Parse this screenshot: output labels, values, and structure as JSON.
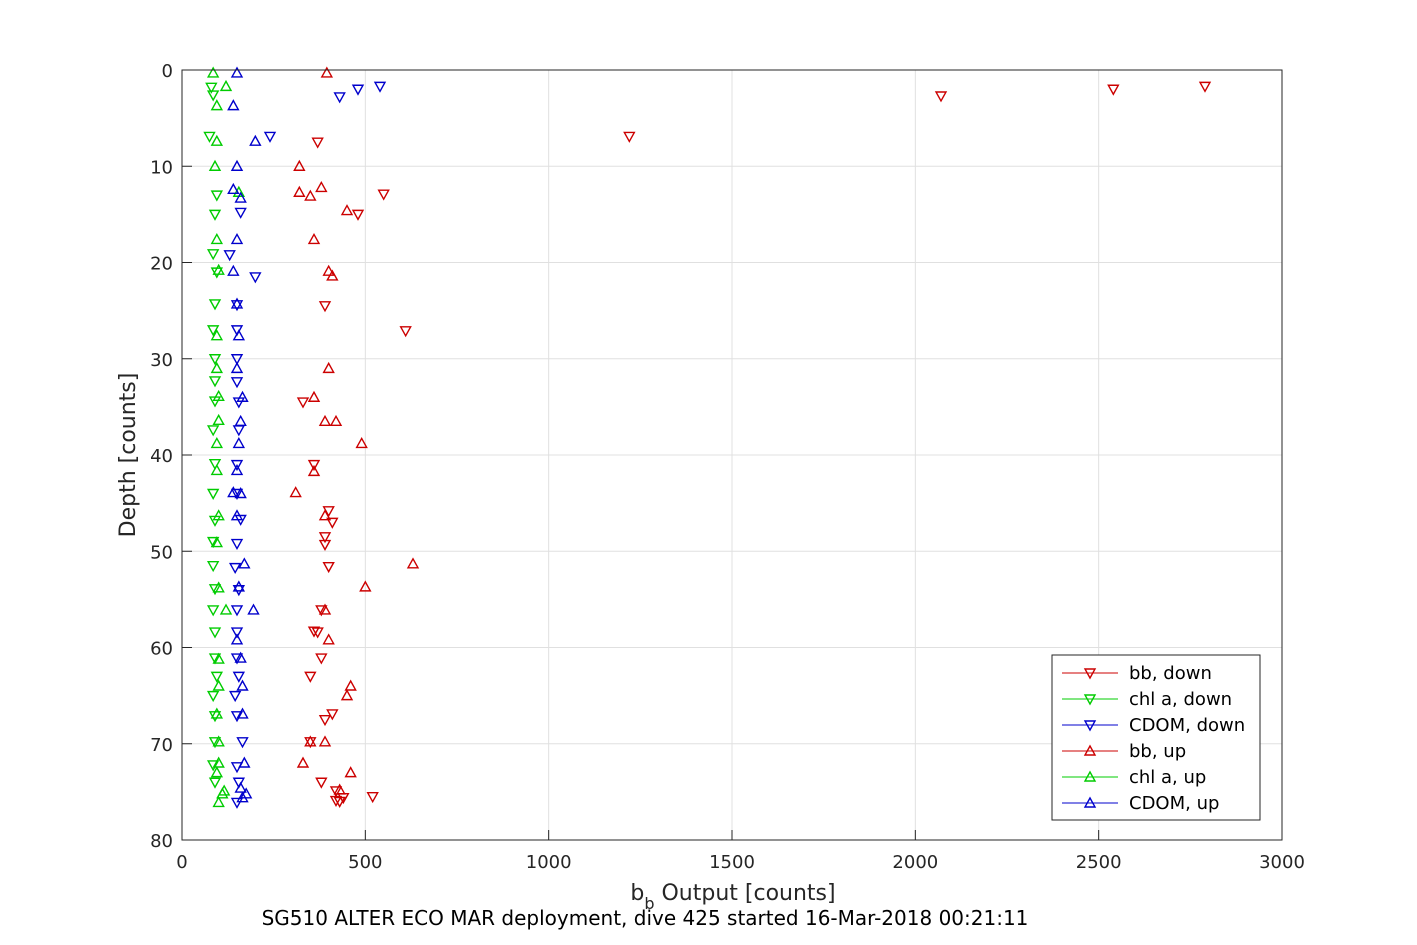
{
  "caption": "SG510 ALTER ECO MAR deployment, dive 425 started 16-Mar-2018 00:21:11",
  "chart_data": {
    "type": "scatter",
    "title": "",
    "xlabel_main": "b",
    "xlabel_sub": "b",
    "xlabel_rest": " Output [counts]",
    "ylabel": "Depth [counts]",
    "xlim": [
      0,
      3000
    ],
    "ylim": [
      0,
      80
    ],
    "y_reversed": true,
    "grid": true,
    "legend_position": "bottom-right",
    "xticks": [
      "0",
      "500",
      "1000",
      "1500",
      "2000",
      "2500",
      "3000"
    ],
    "yticks": [
      "0",
      "10",
      "20",
      "30",
      "40",
      "50",
      "60",
      "70",
      "80"
    ],
    "series": [
      {
        "name": "bb, down",
        "color": "#cc0000",
        "marker": "triangle-down",
        "x": [
          2790,
          2540,
          2070,
          1220,
          370,
          550,
          480,
          390,
          610,
          360,
          400,
          390,
          410,
          390,
          400,
          380,
          370,
          350,
          380,
          420,
          420,
          520,
          430,
          440,
          390,
          380,
          360,
          350,
          410,
          330
        ],
        "y": [
          1.7,
          2.0,
          2.7,
          6.9,
          7.5,
          12.9,
          15.0,
          24.5,
          27.1,
          41.0,
          45.8,
          48.5,
          47.0,
          49.3,
          51.6,
          56.1,
          58.4,
          63.0,
          74.0,
          75.9,
          74.9,
          75.5,
          76.0,
          75.6,
          67.5,
          61.1,
          58.3,
          69.8,
          66.9,
          34.5
        ]
      },
      {
        "name": "chl a, down",
        "color": "#00cc00",
        "marker": "triangle-down",
        "x": [
          80,
          85,
          95,
          75,
          90,
          85,
          95,
          90,
          85,
          90,
          90,
          90,
          85,
          90,
          85,
          90,
          85,
          85,
          90,
          85,
          90,
          90,
          95,
          85,
          90,
          90,
          85,
          90
        ],
        "y": [
          1.8,
          2.6,
          13.0,
          6.9,
          15.0,
          19.1,
          21.0,
          24.3,
          27.0,
          30.0,
          32.3,
          34.4,
          37.4,
          40.9,
          44.0,
          46.8,
          49.0,
          51.5,
          53.9,
          56.1,
          58.4,
          61.1,
          63.0,
          65.0,
          67.1,
          69.8,
          72.2,
          74.0
        ]
      },
      {
        "name": "CDOM, down",
        "color": "#0000cc",
        "marker": "triangle-down",
        "x": [
          540,
          480,
          430,
          240,
          160,
          200,
          130,
          150,
          150,
          150,
          150,
          155,
          155,
          150,
          150,
          160,
          150,
          145,
          155,
          150,
          150,
          150,
          155,
          145,
          150,
          165,
          150,
          155,
          150
        ],
        "y": [
          1.7,
          2.0,
          2.8,
          6.9,
          14.8,
          21.5,
          19.2,
          24.4,
          27.0,
          30.0,
          32.4,
          34.5,
          37.4,
          41.0,
          44.0,
          46.7,
          49.2,
          51.7,
          54.0,
          56.1,
          58.4,
          61.1,
          63.0,
          65.0,
          67.1,
          69.8,
          72.4,
          74.0,
          76.1
        ]
      },
      {
        "name": "bb, up",
        "color": "#cc0000",
        "marker": "triangle-up",
        "x": [
          395,
          320,
          320,
          380,
          350,
          450,
          360,
          400,
          410,
          400,
          360,
          390,
          420,
          490,
          360,
          310,
          390,
          500,
          390,
          400,
          460,
          450,
          350,
          430,
          330,
          460,
          390,
          630
        ],
        "y": [
          0.3,
          10.0,
          12.7,
          12.2,
          13.1,
          14.6,
          17.6,
          20.9,
          21.4,
          31.0,
          34.0,
          36.5,
          36.5,
          38.8,
          41.7,
          43.9,
          46.3,
          53.7,
          56.1,
          59.2,
          64.0,
          65.0,
          69.8,
          74.8,
          72.0,
          73.0,
          69.8,
          51.3
        ]
      },
      {
        "name": "chl a, up",
        "color": "#00cc00",
        "marker": "triangle-up",
        "x": [
          85,
          120,
          95,
          95,
          90,
          155,
          95,
          100,
          95,
          95,
          100,
          100,
          95,
          95,
          100,
          95,
          100,
          120,
          100,
          100,
          95,
          100,
          100,
          95,
          110,
          115,
          100
        ],
        "y": [
          0.3,
          1.7,
          3.7,
          7.4,
          10.0,
          12.7,
          17.6,
          20.8,
          27.6,
          31.0,
          33.9,
          36.4,
          38.8,
          41.6,
          46.3,
          49.1,
          53.8,
          56.1,
          61.2,
          64.0,
          66.9,
          69.8,
          72.0,
          73.0,
          75.2,
          74.9,
          76.1
        ]
      },
      {
        "name": "CDOM, up",
        "color": "#0000cc",
        "marker": "triangle-up",
        "x": [
          150,
          140,
          200,
          150,
          140,
          160,
          150,
          140,
          150,
          155,
          165,
          160,
          155,
          150,
          160,
          150,
          195,
          170,
          155,
          150,
          165,
          165,
          170,
          160,
          165,
          175,
          150,
          160,
          140
        ],
        "y": [
          0.3,
          3.7,
          7.4,
          10.0,
          12.4,
          13.3,
          17.6,
          20.9,
          24.3,
          27.6,
          34.0,
          36.5,
          38.8,
          41.6,
          44.0,
          46.3,
          56.1,
          51.3,
          53.7,
          59.2,
          64.0,
          66.9,
          72.0,
          74.6,
          75.6,
          75.2,
          31.0,
          61.1,
          43.9
        ]
      }
    ]
  }
}
